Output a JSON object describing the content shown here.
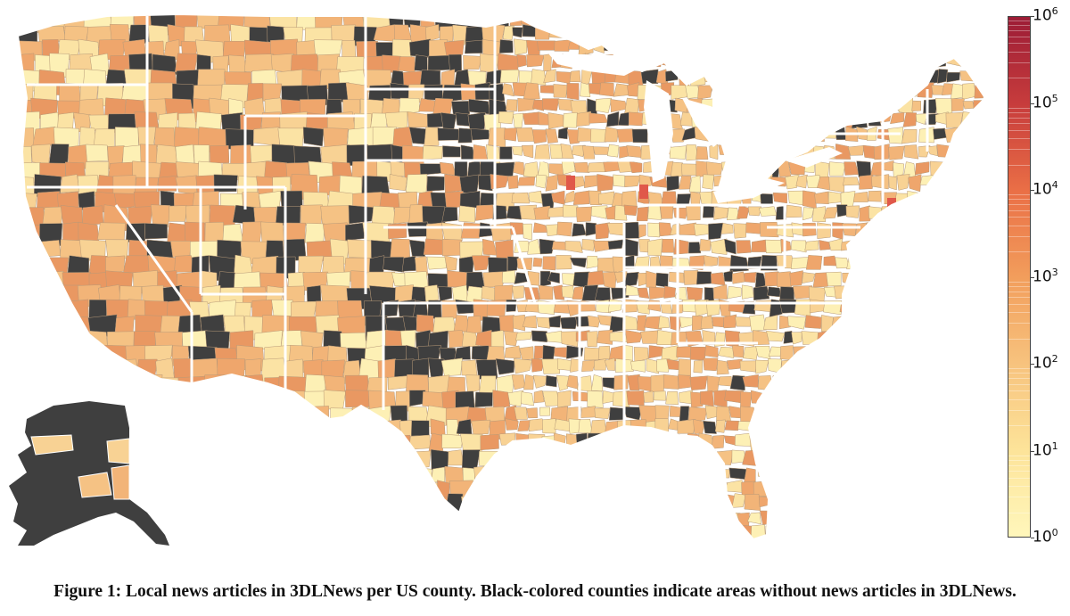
{
  "figure": {
    "caption": "Figure 1: Local news articles in 3DLNews per US county. Black-colored counties indicate areas without news articles in 3DLNews."
  },
  "map": {
    "region": "US counties (contiguous states + Alaska inset)",
    "no_data_color": "#3f3f3f",
    "state_border_color": "#ffffff",
    "county_border_color": "#b89a78"
  },
  "colorbar": {
    "scale": "log",
    "range": [
      1,
      1000000
    ],
    "ticks": [
      {
        "base": "10",
        "exp": "0"
      },
      {
        "base": "10",
        "exp": "1"
      },
      {
        "base": "10",
        "exp": "2"
      },
      {
        "base": "10",
        "exp": "3"
      },
      {
        "base": "10",
        "exp": "4"
      },
      {
        "base": "10",
        "exp": "5"
      },
      {
        "base": "10",
        "exp": "6"
      }
    ],
    "colors": [
      "#fff7bc",
      "#fde49a",
      "#f7c37e",
      "#f29e5c",
      "#ea6f46",
      "#c73c3c",
      "#9c1c36"
    ]
  }
}
